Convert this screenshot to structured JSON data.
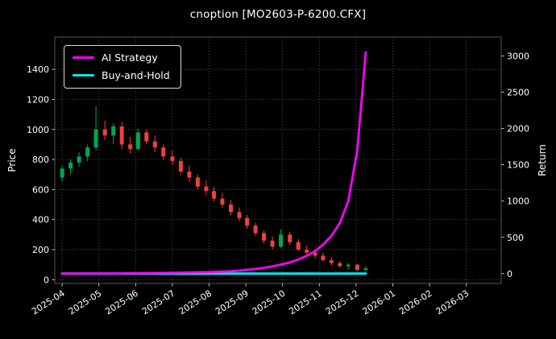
{
  "chart_data": {
    "type": "candlestick+line",
    "title": "cnoption [MO2603-P-6200.CFX]",
    "colors": {
      "background": "#000000",
      "text": "#ffffff",
      "grid": "#9a9a9a",
      "frame": "#565656",
      "candle_up": "#00a651",
      "candle_down": "#ef4040"
    },
    "left_axis": {
      "label": "Price",
      "ticks": [
        0,
        200,
        400,
        600,
        800,
        1000,
        1200,
        1400
      ],
      "range": [
        -25,
        1615
      ]
    },
    "right_axis": {
      "label": "Return",
      "ticks": [
        0,
        500,
        1000,
        1500,
        2000,
        2500,
        3000
      ],
      "range": [
        -135,
        3260
      ]
    },
    "x_axis": {
      "tick_labels": [
        "2025-04",
        "2025-05",
        "2025-06",
        "2025-07",
        "2025-08",
        "2025-09",
        "2025-10",
        "2025-11",
        "2025-12",
        "2026-01",
        "2026-02",
        "2026-03"
      ],
      "range_months": [
        -0.2,
        11.95
      ],
      "grid": true
    },
    "legend": {
      "position": "top-left"
    },
    "candles": {
      "dates": [
        "2025-04-01",
        "2025-04-08",
        "2025-04-15",
        "2025-04-22",
        "2025-04-29",
        "2025-05-06",
        "2025-05-13",
        "2025-05-20",
        "2025-05-27",
        "2025-06-03",
        "2025-06-10",
        "2025-06-17",
        "2025-06-24",
        "2025-07-01",
        "2025-07-08",
        "2025-07-15",
        "2025-07-22",
        "2025-07-29",
        "2025-08-05",
        "2025-08-12",
        "2025-08-19",
        "2025-08-26",
        "2025-09-02",
        "2025-09-09",
        "2025-09-16",
        "2025-09-23",
        "2025-09-30",
        "2025-10-07",
        "2025-10-14",
        "2025-10-21",
        "2025-10-28",
        "2025-11-04",
        "2025-11-11",
        "2025-11-18",
        "2025-11-25",
        "2025-12-02",
        "2025-12-09"
      ],
      "open": [
        680,
        740,
        780,
        820,
        880,
        1000,
        960,
        1020,
        900,
        870,
        980,
        920,
        880,
        820,
        790,
        720,
        680,
        620,
        590,
        540,
        500,
        450,
        410,
        360,
        310,
        260,
        220,
        300,
        250,
        200,
        180,
        160,
        130,
        110,
        90,
        100,
        65
      ],
      "high": [
        760,
        800,
        850,
        900,
        1155,
        1060,
        1040,
        1050,
        950,
        1005,
        1000,
        960,
        900,
        860,
        810,
        760,
        700,
        660,
        620,
        580,
        530,
        480,
        430,
        380,
        330,
        290,
        335,
        320,
        270,
        230,
        200,
        180,
        150,
        125,
        110,
        105,
        90
      ],
      "low": [
        650,
        700,
        750,
        790,
        860,
        930,
        900,
        870,
        840,
        860,
        900,
        850,
        800,
        760,
        700,
        650,
        600,
        560,
        520,
        480,
        430,
        390,
        340,
        290,
        240,
        200,
        210,
        230,
        190,
        160,
        140,
        120,
        95,
        80,
        70,
        55,
        55
      ],
      "close": [
        740,
        780,
        820,
        880,
        1000,
        960,
        1020,
        900,
        870,
        980,
        920,
        880,
        820,
        790,
        720,
        680,
        620,
        590,
        540,
        500,
        450,
        410,
        360,
        310,
        260,
        220,
        300,
        250,
        200,
        180,
        160,
        130,
        110,
        90,
        100,
        65,
        75
      ]
    },
    "series": [
      {
        "name": "AI Strategy",
        "color": "#ff00ff",
        "axis": "right",
        "line_width": 2.8,
        "values": [
          0,
          0,
          1,
          1,
          2,
          2,
          3,
          4,
          5,
          6,
          7,
          8,
          10,
          12,
          14,
          16,
          18,
          20,
          24,
          28,
          34,
          42,
          52,
          65,
          80,
          100,
          125,
          155,
          195,
          245,
          310,
          400,
          520,
          700,
          1000,
          1700,
          3050
        ]
      },
      {
        "name": "Buy-and-Hold",
        "color": "#00e5ee",
        "axis": "right",
        "line_width": 3.2,
        "values": [
          0,
          0,
          0,
          0,
          0,
          0,
          0,
          0,
          0,
          0,
          0,
          0,
          0,
          0,
          0,
          0,
          0,
          0,
          0,
          0,
          0,
          0,
          0,
          0,
          0,
          0,
          0,
          0,
          0,
          0,
          0,
          0,
          0,
          0,
          0,
          0,
          0
        ]
      }
    ]
  }
}
